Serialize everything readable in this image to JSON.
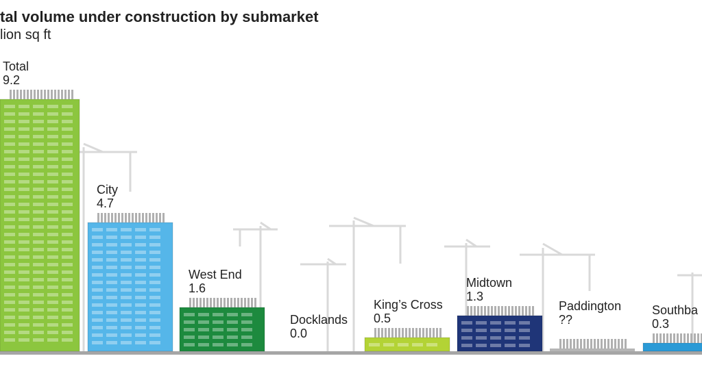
{
  "chart_data": {
    "type": "bar",
    "title": "tal volume under construction by submarket",
    "subtitle": "lion sq ft",
    "categories": [
      "Total",
      "City",
      "West End",
      "Docklands",
      "King’s Cross",
      "Midtown",
      "Paddington",
      "Southba"
    ],
    "values": [
      9.2,
      4.7,
      1.6,
      0.0,
      0.5,
      1.3,
      null,
      0.3
    ],
    "value_labels": [
      "9.2",
      "4.7",
      "1.6",
      "0.0",
      "0.5",
      "1.3",
      "??",
      "0.3"
    ],
    "colors": [
      "#8cc63f",
      "#55b6e9",
      "#1d8a3e",
      "#cccccc",
      "#b3d335",
      "#1f3578",
      "#b5b5b5",
      "#2b9ad6"
    ]
  }
}
